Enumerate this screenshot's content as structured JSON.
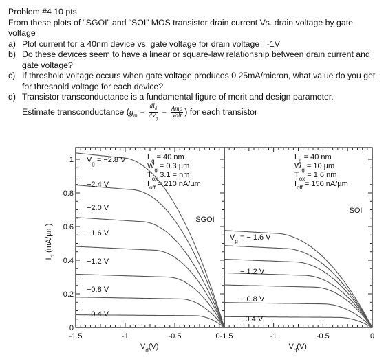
{
  "problem": {
    "heading": "Problem #4 10 pts",
    "intro": "From these plots of “SGOI” and “SOI” MOS transistor drain current Vs. drain voltage by gate voltage",
    "items": [
      {
        "label": "a)",
        "text": "Plot current for a 40nm device vs. gate voltage for drain voltage =-1V"
      },
      {
        "label": "b)",
        "text": "Do these devices seem to have a linear or square-law relationship between drain current and gate voltage?"
      },
      {
        "label": "c)",
        "text": "If threshold voltage occurs when gate voltage produces 0.25mA/micron, what value do you get for threshold voltage for each device?"
      },
      {
        "label": "d)",
        "text": "Transistor transconductance is a fundamental figure of merit and design parameter."
      }
    ],
    "estimate_prefix": "Estimate transconductance (",
    "gm_lhs": "g",
    "gm_sub": "m",
    "dId": "dI",
    "dId_sub": "d",
    "dVg": "dV",
    "dVg_sub": "g",
    "amp": "Amp",
    "volt": "Volt",
    "estimate_suffix": ") for each transistor"
  },
  "chart_data": [
    {
      "type": "line",
      "title": "SGOI",
      "xlabel": "V_d(V)",
      "ylabel": "I_d (mA/µm)",
      "xlim": [
        -1.5,
        0
      ],
      "ylim": [
        0,
        1.0
      ],
      "xticks": [
        "-1.5",
        "-1",
        "-0.5",
        "0"
      ],
      "yticks": [
        "0",
        "0.2",
        "0.4",
        "0.6",
        "0.8",
        "1"
      ],
      "params": [
        "L_g = 40 nm",
        "W_g = 0.3 µm",
        "T_ox 3.1 = nm",
        "I_off = 210 nA/µm"
      ],
      "series": [
        {
          "name": "V_g = −2.8 V",
          "saturation": 1.01,
          "vdsat": 1.05
        },
        {
          "name": "−2.4 V",
          "saturation": 0.82,
          "vdsat": 0.95
        },
        {
          "name": "−2.0 V",
          "saturation": 0.63,
          "vdsat": 0.85
        },
        {
          "name": "−1.6 V",
          "saturation": 0.46,
          "vdsat": 0.72
        },
        {
          "name": "−1.2 V",
          "saturation": 0.3,
          "vdsat": 0.58
        },
        {
          "name": "−0.8 V",
          "saturation": 0.17,
          "vdsat": 0.45
        },
        {
          "name": "−0.4 V",
          "saturation": 0.07,
          "vdsat": 0.3
        }
      ]
    },
    {
      "type": "line",
      "title": "SOI",
      "xlabel": "V_d(V)",
      "ylabel": "",
      "xlim": [
        -1.5,
        0
      ],
      "ylim": [
        0,
        1.0
      ],
      "xticks": [
        "-1.5",
        "-1",
        "-0.5",
        "0"
      ],
      "yticks": [],
      "params": [
        "L_g = 40 nm",
        "W_g = 10 µm",
        "T_ox = 1.6 nm",
        "I_off = 150 nA/µm"
      ],
      "series": [
        {
          "name": "V_g = − 1.6 V",
          "saturation": 0.56,
          "vdsat": 1.0
        },
        {
          "name": "",
          "saturation": 0.47,
          "vdsat": 0.9
        },
        {
          "name": "− 1.2 V",
          "saturation": 0.39,
          "vdsat": 0.8
        },
        {
          "name": "",
          "saturation": 0.31,
          "vdsat": 0.7
        },
        {
          "name": "− 0.8 V",
          "saturation": 0.24,
          "vdsat": 0.6
        },
        {
          "name": "",
          "saturation": 0.14,
          "vdsat": 0.5
        },
        {
          "name": "− 0.4 V",
          "saturation": 0.06,
          "vdsat": 0.35
        }
      ]
    }
  ]
}
